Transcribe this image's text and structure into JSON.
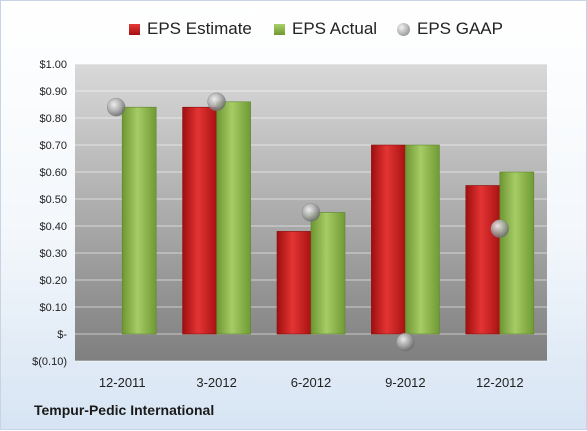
{
  "company_label": "Tempur-Pedic International",
  "legend": {
    "estimate": "EPS Estimate",
    "actual": "EPS Actual",
    "gaap": "EPS GAAP"
  },
  "colors": {
    "estimate": "#c41a1a",
    "actual": "#8cb84b",
    "gaap": "#a8a8a8",
    "plot_top": "#d9d9d9",
    "plot_bottom": "#7f7f7f"
  },
  "chart_data": {
    "type": "bar",
    "categories": [
      "12-2011",
      "3-2012",
      "6-2012",
      "9-2012",
      "12-2012"
    ],
    "series": [
      {
        "name": "EPS Estimate",
        "values": [
          null,
          0.84,
          0.38,
          0.7,
          0.55
        ]
      },
      {
        "name": "EPS Actual",
        "values": [
          0.84,
          0.86,
          0.45,
          0.7,
          0.6
        ]
      },
      {
        "name": "EPS GAAP",
        "values": [
          0.84,
          0.86,
          0.45,
          -0.03,
          0.39
        ]
      }
    ],
    "y_ticks": [
      "$(0.10)",
      "$-",
      "$0.10",
      "$0.20",
      "$0.30",
      "$0.40",
      "$0.50",
      "$0.60",
      "$0.70",
      "$0.80",
      "$0.90",
      "$1.00"
    ],
    "ylim": [
      -0.1,
      1.0
    ],
    "grid": true,
    "legend_position": "top"
  }
}
